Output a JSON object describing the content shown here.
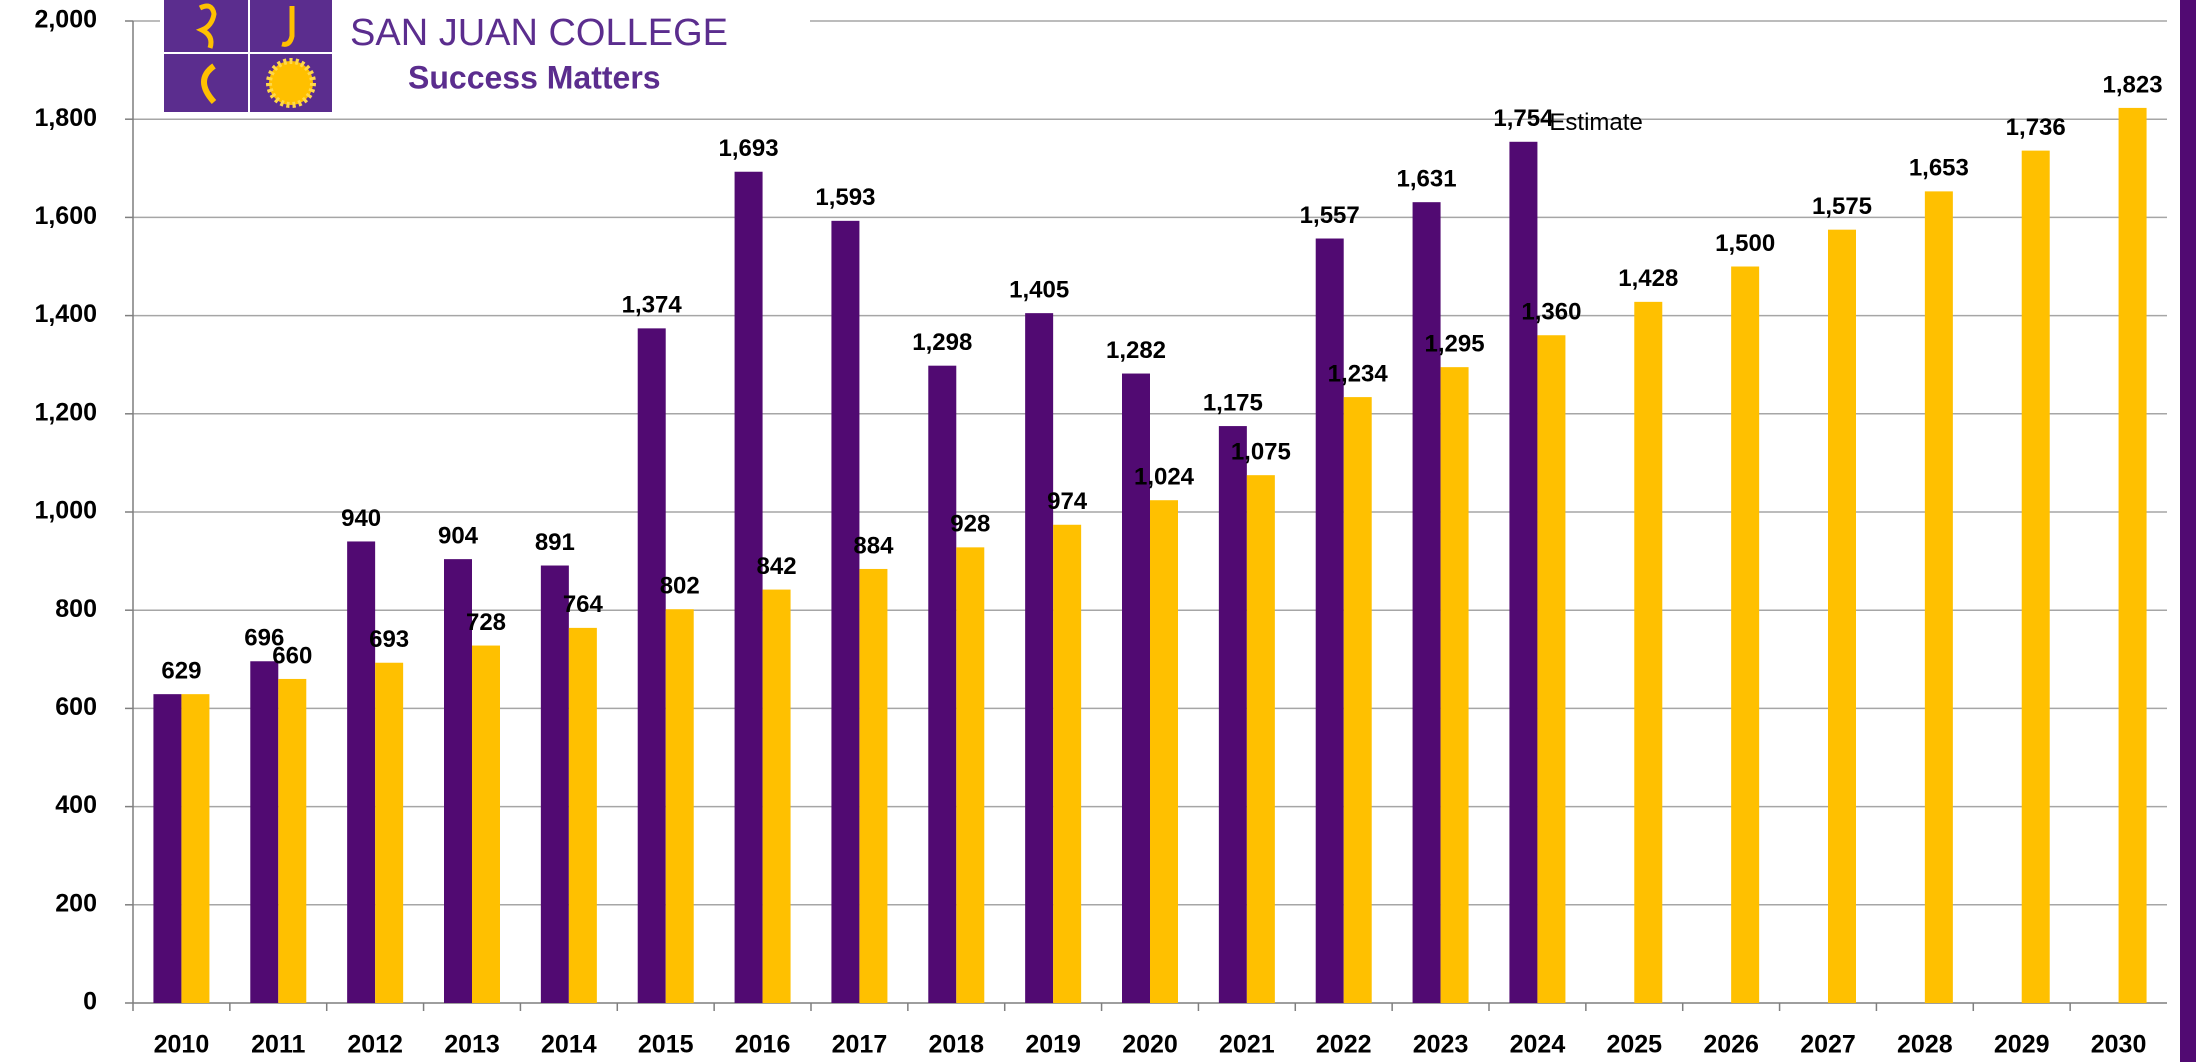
{
  "chart_data": {
    "type": "grouped_bar",
    "logo": {
      "title": "SAN JUAN COLLEGE",
      "subtitle": "Success Matters"
    },
    "annotation": "Estimate",
    "categories": [
      "2010",
      "2011",
      "2012",
      "2013",
      "2014",
      "2015",
      "2016",
      "2017",
      "2018",
      "2019",
      "2020",
      "2021",
      "2022",
      "2023",
      "2024",
      "2025",
      "2026",
      "2027",
      "2028",
      "2029",
      "2030"
    ],
    "series": [
      {
        "color": "#510a72",
        "values": [
          629,
          696,
          940,
          904,
          891,
          1374,
          1693,
          1593,
          1298,
          1405,
          1282,
          1175,
          1557,
          1631,
          1754,
          null,
          null,
          null,
          null,
          null,
          null
        ],
        "value_labels": [
          "629",
          "696",
          "940",
          "904",
          "891",
          "1,374",
          "1,693",
          "1,593",
          "1,298",
          "1,405",
          "1,282",
          "1,175",
          "1,557",
          "1,631",
          "1,754",
          null,
          null,
          null,
          null,
          null,
          null
        ]
      },
      {
        "color": "#ffc000",
        "values": [
          629,
          660,
          693,
          728,
          764,
          802,
          842,
          884,
          928,
          974,
          1024,
          1075,
          1234,
          1295,
          1360,
          1428,
          1500,
          1575,
          1653,
          1736,
          1823
        ],
        "value_labels": [
          null,
          "660",
          "693",
          "728",
          "764",
          "802",
          "842",
          "884",
          "928",
          "974",
          "1,024",
          "1,075",
          "1,234",
          "1,295",
          "1,360",
          "1,428",
          "1,500",
          "1,575",
          "1,653",
          "1,736",
          "1,823"
        ]
      }
    ],
    "ylim": [
      0,
      2000
    ],
    "yticks": [
      0,
      200,
      400,
      600,
      800,
      {
        "value": 1000,
        "label": "1,000"
      },
      {
        "value": 1200,
        "label": "1,200"
      },
      {
        "value": 1400,
        "label": "1,400"
      },
      {
        "value": 1600,
        "label": "1,600"
      },
      {
        "value": 1800,
        "label": "1,800"
      },
      {
        "value": 2000,
        "label": "2,000"
      }
    ],
    "grid": true
  }
}
